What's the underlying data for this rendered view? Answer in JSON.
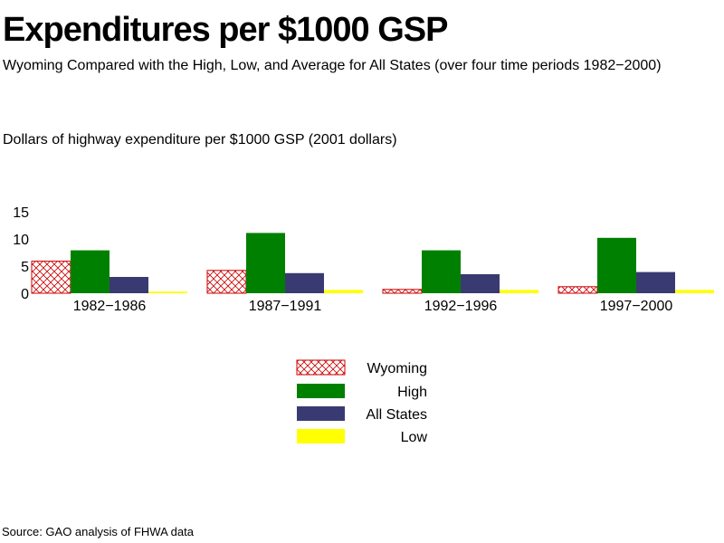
{
  "title": "Expenditures per $1000 GSP",
  "subtitle": "Wyoming Compared with the High, Low, and Average for All States (over four time periods 1982−2000)",
  "source": "Source: GAO analysis of FHWA data",
  "colors": {
    "wyoming": "#cc0000",
    "high": "#008000",
    "all_states": "#3a3a73",
    "low": "#ffff00"
  },
  "chart_data": {
    "type": "bar",
    "ylabel": "Dollars of highway expenditure per $1000 GSP  (2001 dollars)",
    "ylim": [
      0,
      15
    ],
    "yticks": [
      0,
      5,
      10,
      15
    ],
    "categories": [
      "1982−1986",
      "1987−1991",
      "1992−1996",
      "1997−2000"
    ],
    "series": [
      {
        "name": "Wyoming",
        "color": "#cc0000",
        "pattern": "crosshatch",
        "values": [
          5.9,
          4.2,
          0.7,
          1.2
        ]
      },
      {
        "name": "High",
        "color": "#008000",
        "values": [
          7.9,
          11.1,
          7.9,
          10.2
        ]
      },
      {
        "name": "All States",
        "color": "#3a3a73",
        "values": [
          3.0,
          3.7,
          3.5,
          3.9
        ]
      },
      {
        "name": "Low",
        "color": "#ffff00",
        "values": [
          0.3,
          0.6,
          0.6,
          0.6
        ]
      }
    ],
    "grid": false,
    "legend_position": "bottom-center"
  }
}
